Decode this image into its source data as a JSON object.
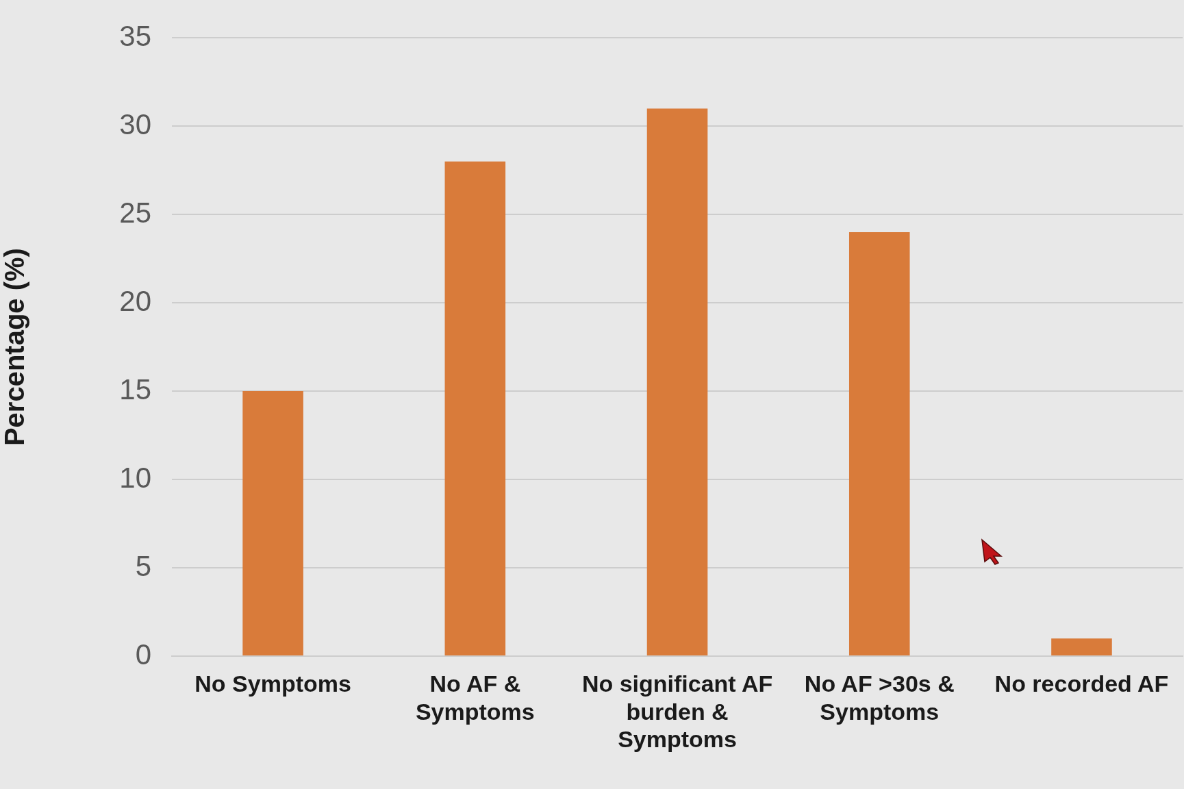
{
  "chart_data": {
    "type": "bar",
    "ylabel": "Percentage (%)",
    "categories": [
      "No Symptoms",
      "No AF & Symptoms",
      "No significant AF burden & Symptoms",
      "No AF >30s & Symptoms",
      "No recorded AF"
    ],
    "values": [
      15,
      28,
      31,
      24,
      1
    ],
    "color": "#d97b3a",
    "ylim": [
      0,
      35
    ],
    "yticks": [
      0,
      5,
      10,
      15,
      20,
      25,
      30,
      35
    ],
    "grid": "y",
    "legend": false
  }
}
